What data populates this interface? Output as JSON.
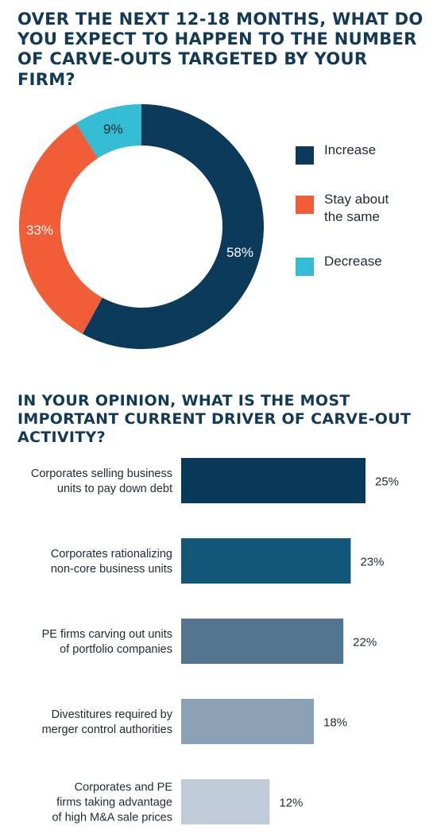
{
  "chart_data": [
    {
      "type": "pie",
      "title": "OVER THE NEXT 12-18 MONTHS, WHAT DO YOU EXPECT TO HAPPEN TO THE NUMBER OF CARVE-OUTS TARGETED BY YOUR FIRM?",
      "categories": [
        "Increase",
        "Stay about the same",
        "Decrease"
      ],
      "values": [
        58,
        33,
        9
      ],
      "labels": [
        "58%",
        "33%",
        "9%"
      ],
      "colors": [
        "#0b3a5b",
        "#f05d36",
        "#34bdd2"
      ],
      "legend_labels": [
        [
          "Increase"
        ],
        [
          "Stay about",
          "the same"
        ],
        [
          "Decrease"
        ]
      ],
      "legend_placement": "right"
    },
    {
      "type": "bar",
      "title": "IN YOUR OPINION, WHAT IS THE MOST IMPORTANT CURRENT DRIVER OF CARVE-OUT ACTIVITY?",
      "categories": [
        [
          "Corporates selling business",
          "units to pay down debt"
        ],
        [
          "Corporates rationalizing",
          "non-core business units"
        ],
        [
          "PE firms carving out units",
          "of portfolio companies"
        ],
        [
          "Divestitures required by",
          "merger control authorities"
        ],
        [
          "Corporates and PE",
          "firms taking advantage",
          "of high M&A sale prices"
        ]
      ],
      "values": [
        25,
        23,
        22,
        18,
        12
      ],
      "labels": [
        "25%",
        "23%",
        "22%",
        "18%",
        "12%"
      ],
      "colors": [
        "#073a5a",
        "#12567a",
        "#53758f",
        "#8aa1b6",
        "#c0ccd9"
      ],
      "orientation": "horizontal"
    }
  ]
}
